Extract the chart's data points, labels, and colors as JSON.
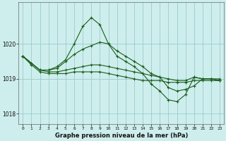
{
  "title": "Graphe pression niveau de la mer (hPa)",
  "xlim": [
    -0.5,
    23.5
  ],
  "ylim": [
    1017.7,
    1021.2
  ],
  "yticks": [
    1018,
    1019,
    1020
  ],
  "xticks": [
    0,
    1,
    2,
    3,
    4,
    5,
    6,
    7,
    8,
    9,
    10,
    11,
    12,
    13,
    14,
    15,
    16,
    17,
    18,
    19,
    20,
    21,
    22,
    23
  ],
  "bg_color": "#ceeeed",
  "grid_color": "#99cccc",
  "line_color": "#1a5c1a",
  "series": [
    {
      "x": [
        0,
        1,
        2,
        3,
        4,
        5,
        6,
        7,
        8,
        9,
        10,
        11,
        12,
        13,
        14,
        15,
        16,
        17,
        18,
        19,
        20,
        21,
        22,
        23
      ],
      "y": [
        1019.65,
        1019.45,
        1019.25,
        1019.25,
        1019.35,
        1019.55,
        1020.0,
        1020.5,
        1020.75,
        1020.55,
        1020.0,
        1019.65,
        1019.5,
        1019.35,
        1019.15,
        1018.85,
        1018.65,
        1018.4,
        1018.35,
        1018.55,
        1019.05,
        1019.0,
        1019.0,
        1018.95
      ]
    },
    {
      "x": [
        0,
        1,
        2,
        3,
        4,
        5,
        6,
        7,
        8,
        9,
        10,
        11,
        12,
        13,
        14,
        15,
        16,
        17,
        18,
        19,
        20,
        21,
        22,
        23
      ],
      "y": [
        1019.65,
        1019.45,
        1019.25,
        1019.25,
        1019.3,
        1019.5,
        1019.7,
        1019.85,
        1019.95,
        1020.05,
        1020.0,
        1019.8,
        1019.65,
        1019.5,
        1019.35,
        1019.15,
        1019.05,
        1018.75,
        1018.65,
        1018.7,
        1018.8,
        1019.0,
        1019.0,
        1018.95
      ]
    },
    {
      "x": [
        0,
        1,
        2,
        3,
        4,
        5,
        6,
        7,
        8,
        9,
        10,
        11,
        12,
        13,
        14,
        15,
        16,
        17,
        18,
        19,
        20,
        21,
        22,
        23
      ],
      "y": [
        1019.65,
        1019.45,
        1019.25,
        1019.2,
        1019.2,
        1019.25,
        1019.3,
        1019.35,
        1019.4,
        1019.4,
        1019.35,
        1019.3,
        1019.25,
        1019.2,
        1019.15,
        1019.1,
        1019.05,
        1019.0,
        1018.95,
        1018.95,
        1019.05,
        1019.0,
        1019.0,
        1019.0
      ]
    },
    {
      "x": [
        0,
        1,
        2,
        3,
        4,
        5,
        6,
        7,
        8,
        9,
        10,
        11,
        12,
        13,
        14,
        15,
        16,
        17,
        18,
        19,
        20,
        21,
        22,
        23
      ],
      "y": [
        1019.65,
        1019.4,
        1019.2,
        1019.15,
        1019.15,
        1019.15,
        1019.2,
        1019.2,
        1019.2,
        1019.2,
        1019.15,
        1019.1,
        1019.05,
        1019.0,
        1018.95,
        1018.95,
        1018.95,
        1018.9,
        1018.9,
        1018.9,
        1018.95,
        1018.95,
        1018.95,
        1018.95
      ]
    }
  ]
}
